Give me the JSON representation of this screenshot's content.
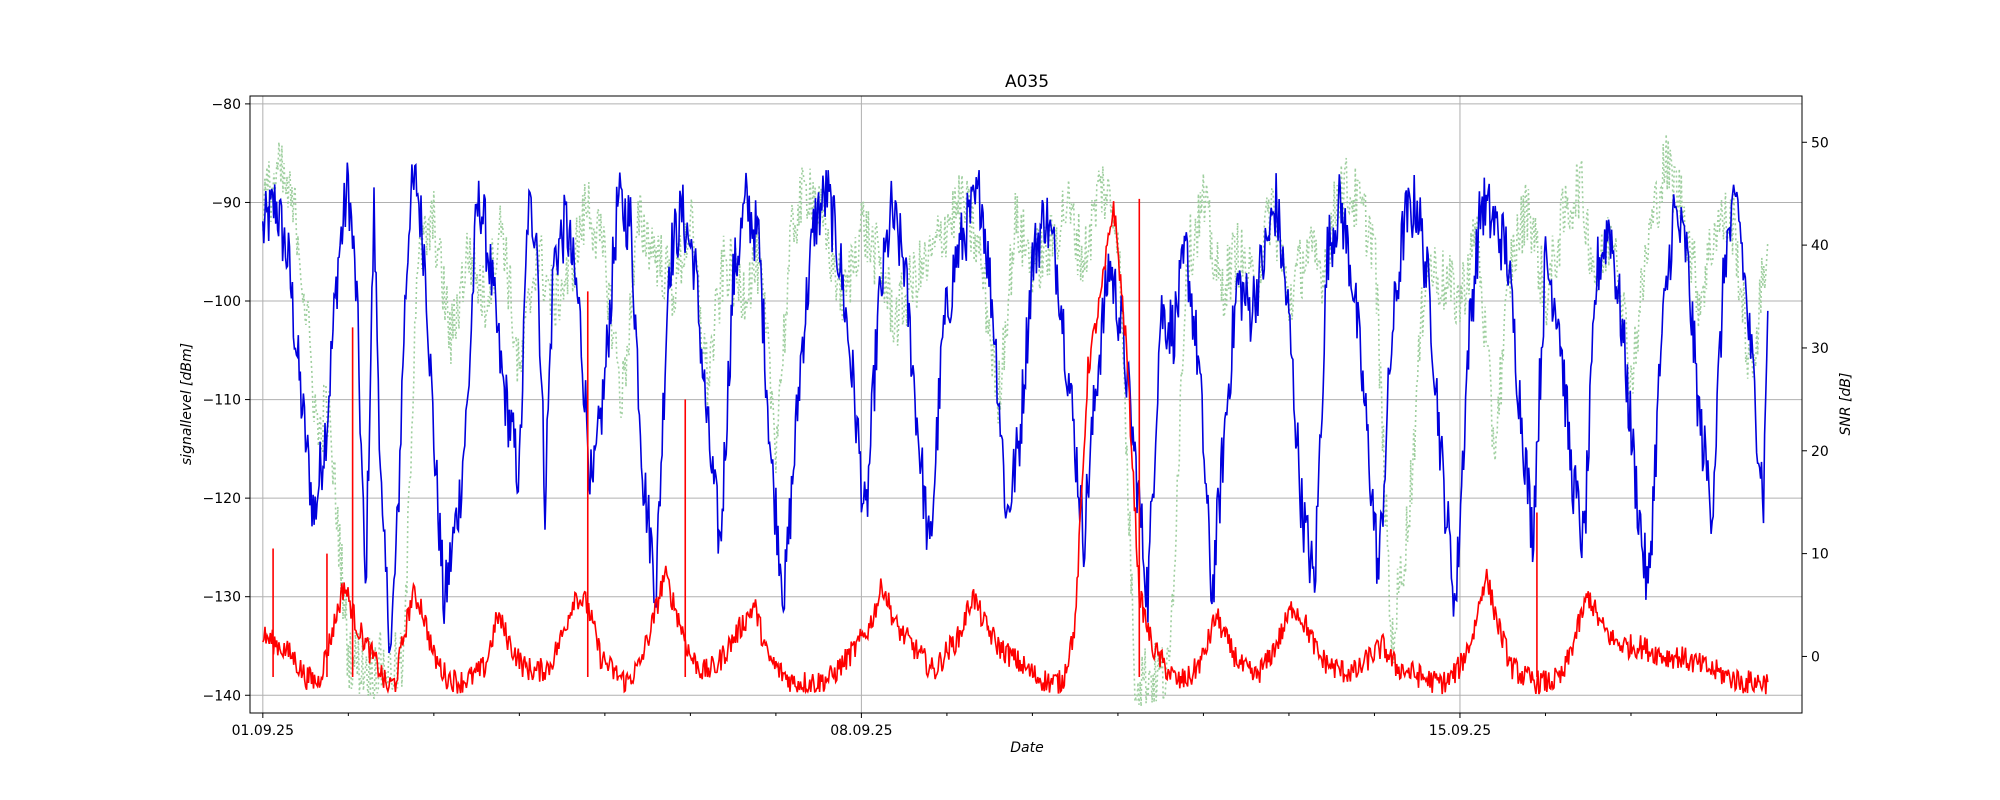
{
  "chart_data": {
    "type": "line",
    "title": "A035",
    "xlabel": "Date",
    "ylabel": "signallevel [dBm]",
    "ylabel_right": "SNR [dB]",
    "x_tick_labels": [
      "01.09.25",
      "08.09.25",
      "15.09.25"
    ],
    "x_range_days": [
      -0.15,
      18.0
    ],
    "x_range_dates": [
      "31.08.25",
      "19.09.25"
    ],
    "ylim_left": [
      -141.8,
      -79.2
    ],
    "ylim_right": [
      -5.5,
      54.5
    ],
    "y_ticks_left": [
      -80,
      -90,
      -100,
      -110,
      -120,
      -130,
      -140
    ],
    "y_ticks_right": [
      50,
      40,
      30,
      20,
      10,
      0
    ],
    "grid": true,
    "legend": "none",
    "series": [
      {
        "axis": "left",
        "color": "#0000dd",
        "style": "solid",
        "daily_peaks_dBm": [
          -86,
          -87,
          -87,
          -89,
          -87,
          -87,
          -89,
          -84,
          -86,
          -88,
          -87,
          -88,
          -87,
          -90,
          -86,
          -86,
          -87,
          -89,
          -88
        ],
        "daily_troughs_dBm": [
          -123,
          -130,
          -135,
          -125,
          -120,
          -128,
          -130,
          -136,
          -133,
          -134,
          -120,
          -124,
          -135,
          -134,
          -133,
          -130,
          -136,
          -131,
          -129
        ],
        "x": [
          0.0,
          0.15,
          0.3,
          0.45,
          0.6,
          0.75,
          0.88,
          1.0,
          1.1,
          1.2,
          1.3,
          1.4,
          1.5,
          1.58,
          1.65,
          1.72,
          1.8,
          1.9,
          2.0,
          2.12,
          2.2,
          2.3,
          2.4,
          2.45,
          2.5,
          2.55,
          2.65,
          2.8,
          3.0,
          3.1,
          3.2,
          3.3,
          3.4,
          3.55,
          3.7,
          3.85,
          4.0,
          4.15,
          4.3,
          4.45,
          4.6,
          4.75,
          4.9,
          5.05,
          5.2,
          5.35,
          5.5,
          5.65,
          5.8,
          5.95,
          6.1,
          6.3,
          6.45,
          6.6,
          6.75,
          6.9,
          7.05,
          7.2,
          7.35,
          7.5,
          7.65,
          7.8,
          7.95,
          8.1,
          8.25,
          8.4,
          8.55,
          8.7,
          8.85,
          9.0,
          9.15,
          9.3,
          9.45,
          9.6,
          9.75,
          9.9,
          10.05,
          10.2,
          10.35,
          10.5,
          10.65,
          10.8,
          10.95,
          11.1,
          11.25,
          11.4,
          11.55,
          11.7,
          11.85,
          12.0,
          12.15,
          12.3,
          12.45,
          12.6,
          12.75,
          12.9,
          13.05,
          13.2,
          13.35,
          13.5,
          13.65,
          13.8,
          13.95,
          14.1,
          14.25,
          14.4,
          14.55,
          14.7,
          14.85,
          15.0,
          15.15,
          15.3,
          15.45,
          15.6,
          15.75,
          15.9,
          16.05,
          16.2,
          16.35,
          16.5,
          16.65,
          16.8,
          16.95,
          17.1,
          17.25,
          17.4,
          17.55,
          17.6
        ],
        "y": [
          -93,
          -90,
          -96,
          -110,
          -122,
          -112,
          -96,
          -88,
          -100,
          -130,
          -91,
          -124,
          -135,
          -122,
          -103,
          -90,
          -88,
          -96,
          -114,
          -131,
          -126,
          -120,
          -110,
          -100,
          -91,
          -90,
          -96,
          -108,
          -118,
          -91,
          -92,
          -120,
          -96,
          -92,
          -101,
          -120,
          -108,
          -90,
          -92,
          -118,
          -129,
          -96,
          -91,
          -96,
          -113,
          -125,
          -98,
          -90,
          -94,
          -117,
          -130,
          -105,
          -92,
          -89,
          -96,
          -108,
          -123,
          -101,
          -91,
          -96,
          -112,
          -126,
          -104,
          -96,
          -92,
          -89,
          -102,
          -122,
          -114,
          -96,
          -91,
          -97,
          -110,
          -124,
          -108,
          -96,
          -103,
          -116,
          -130,
          -101,
          -103,
          -95,
          -107,
          -130,
          -113,
          -98,
          -101,
          -96,
          -90,
          -102,
          -121,
          -129,
          -95,
          -90,
          -98,
          -112,
          -128,
          -104,
          -92,
          -90,
          -100,
          -118,
          -131,
          -104,
          -90,
          -92,
          -95,
          -110,
          -124,
          -96,
          -101,
          -117,
          -125,
          -97,
          -92,
          -103,
          -118,
          -130,
          -105,
          -91,
          -95,
          -112,
          -121,
          -95,
          -90,
          -105,
          -120,
          -101
        ]
      },
      {
        "axis": "right",
        "color": "#ff0000",
        "style": "solid",
        "x": [
          0.0,
          0.1,
          0.2,
          0.35,
          0.5,
          0.65,
          0.8,
          0.95,
          1.1,
          1.25,
          1.35,
          1.45,
          1.55,
          1.65,
          1.75,
          1.85,
          2.0,
          2.15,
          2.3,
          2.45,
          2.6,
          2.75,
          2.9,
          3.05,
          3.2,
          3.35,
          3.5,
          3.65,
          3.8,
          3.95,
          4.1,
          4.25,
          4.4,
          4.55,
          4.7,
          4.85,
          5.0,
          5.15,
          5.3,
          5.45,
          5.6,
          5.75,
          5.9,
          6.05,
          6.2,
          6.35,
          6.5,
          6.65,
          6.8,
          6.95,
          7.1,
          7.25,
          7.4,
          7.55,
          7.7,
          7.85,
          8.0,
          8.15,
          8.3,
          8.45,
          8.6,
          8.75,
          8.9,
          9.05,
          9.2,
          9.35,
          9.5,
          9.65,
          9.8,
          9.95,
          10.1,
          10.25,
          10.4,
          10.55,
          10.7,
          10.85,
          11.0,
          11.15,
          11.3,
          11.45,
          11.6,
          11.75,
          11.9,
          12.05,
          12.2,
          12.35,
          12.5,
          12.65,
          12.8,
          12.95,
          13.1,
          13.25,
          13.4,
          13.55,
          13.7,
          13.85,
          14.0,
          14.15,
          14.3,
          14.45,
          14.6,
          14.75,
          14.9,
          15.05,
          15.2,
          15.35,
          15.5,
          15.65,
          15.8,
          15.95,
          16.1,
          16.25,
          16.4,
          16.55,
          16.7,
          16.85,
          17.0,
          17.15,
          17.3,
          17.45,
          17.6
        ],
        "y": [
          2,
          1.5,
          1,
          0,
          -2,
          -2.5,
          2,
          7,
          3,
          0.5,
          -1,
          -3,
          -2.5,
          2,
          6,
          5,
          0,
          -2,
          -2.5,
          -2,
          -1,
          4,
          1,
          -1,
          -1.5,
          -1,
          2,
          6,
          5,
          0,
          -1.5,
          -2.5,
          -1,
          3,
          8,
          4,
          0,
          -1.5,
          -1,
          1,
          3,
          5,
          0,
          -1.5,
          -2.5,
          -2.5,
          -2.5,
          -2,
          -0.5,
          1,
          3,
          7,
          3,
          1.5,
          0,
          -1.5,
          0.5,
          2,
          6,
          3,
          1,
          0,
          -1,
          -2,
          -2.5,
          -2.5,
          3,
          28,
          35,
          44,
          30,
          6,
          1,
          -1,
          -2.5,
          -2,
          0,
          4,
          1,
          -1,
          -2,
          -0.5,
          2,
          5,
          3,
          0,
          -1,
          -1.5,
          -1.5,
          0,
          1,
          -1,
          -1.5,
          -2,
          -2.5,
          -2.5,
          -1,
          2,
          8,
          3,
          -1,
          -2,
          -2.5,
          -2.5,
          -2,
          2,
          6,
          3,
          1.5,
          1,
          1,
          0.5,
          0,
          0,
          -0.5,
          -1,
          -1.5,
          -2,
          -2.5,
          -2.5,
          -2.5
        ],
        "spikes": [
          {
            "x": 0.12,
            "y": 10.5
          },
          {
            "x": 0.75,
            "y": 10
          },
          {
            "x": 1.05,
            "y": 32
          },
          {
            "x": 3.8,
            "y": 35.5
          },
          {
            "x": 4.94,
            "y": 25
          },
          {
            "x": 10.25,
            "y": 44.5
          },
          {
            "x": 14.9,
            "y": 14
          }
        ]
      },
      {
        "axis": "left",
        "color": "#9fcf9f",
        "style": "dotted",
        "x": [
          0.0,
          0.2,
          0.4,
          0.55,
          0.65,
          0.75,
          0.9,
          1.0,
          1.2,
          1.35,
          1.5,
          1.65,
          1.8,
          2.0,
          2.2,
          2.4,
          2.6,
          2.8,
          3.0,
          3.2,
          3.4,
          3.6,
          3.8,
          4.0,
          4.2,
          4.4,
          4.6,
          4.8,
          5.0,
          5.2,
          5.4,
          5.6,
          5.8,
          6.0,
          6.2,
          6.4,
          6.6,
          6.8,
          7.0,
          7.2,
          7.4,
          7.6,
          7.8,
          8.0,
          8.2,
          8.4,
          8.6,
          8.8,
          9.0,
          9.2,
          9.4,
          9.6,
          9.8,
          10.0,
          10.2,
          10.4,
          10.6,
          10.8,
          11.0,
          11.2,
          11.4,
          11.6,
          11.8,
          12.0,
          12.2,
          12.4,
          12.6,
          12.8,
          13.0,
          13.2,
          13.4,
          13.6,
          13.8,
          14.0,
          14.2,
          14.4,
          14.6,
          14.8,
          15.0,
          15.2,
          15.4,
          15.6,
          15.8,
          16.0,
          16.2,
          16.4,
          16.6,
          16.8,
          17.0,
          17.2,
          17.4,
          17.6
        ],
        "y": [
          -90,
          -87,
          -92,
          -105,
          -114,
          -110,
          -125,
          -136,
          -137,
          -137,
          -137,
          -137,
          -96,
          -92,
          -104,
          -95,
          -100,
          -92,
          -108,
          -95,
          -100,
          -97,
          -90,
          -96,
          -110,
          -92,
          -95,
          -99,
          -92,
          -108,
          -96,
          -99,
          -96,
          -114,
          -92,
          -88,
          -94,
          -100,
          -92,
          -96,
          -102,
          -98,
          -96,
          -92,
          -90,
          -96,
          -110,
          -92,
          -96,
          -95,
          -90,
          -96,
          -88,
          -92,
          -138,
          -138,
          -138,
          -96,
          -90,
          -99,
          -95,
          -99,
          -90,
          -100,
          -95,
          -97,
          -88,
          -90,
          -94,
          -135,
          -122,
          -96,
          -98,
          -100,
          -93,
          -115,
          -96,
          -90,
          -100,
          -92,
          -88,
          -98,
          -92,
          -108,
          -94,
          -86,
          -90,
          -100,
          -92,
          -92,
          -108,
          -94
        ]
      }
    ]
  }
}
